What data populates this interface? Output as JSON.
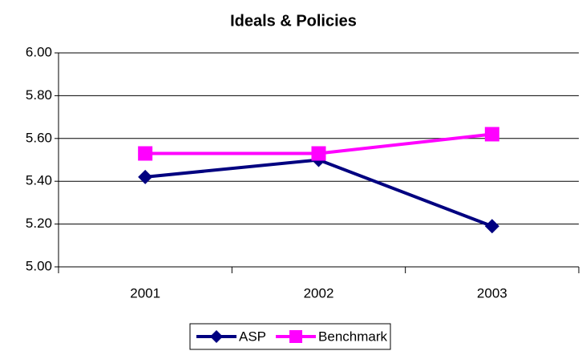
{
  "chart_data": {
    "type": "line",
    "title": "Ideals & Policies",
    "categories": [
      "2001",
      "2002",
      "2003"
    ],
    "series": [
      {
        "name": "ASP",
        "color": "#000080",
        "marker": "diamond",
        "values": [
          5.42,
          5.5,
          5.19
        ]
      },
      {
        "name": "Benchmark",
        "color": "#ff00ff",
        "marker": "square",
        "values": [
          5.53,
          5.53,
          5.62
        ]
      }
    ],
    "ylim": [
      5.0,
      6.0
    ],
    "yticks": [
      {
        "value": 5.0,
        "label": "5.00"
      },
      {
        "value": 5.2,
        "label": "5.20"
      },
      {
        "value": 5.4,
        "label": "5.40"
      },
      {
        "value": 5.6,
        "label": "5.60"
      },
      {
        "value": 5.8,
        "label": "5.80"
      },
      {
        "value": 6.0,
        "label": "6.00"
      }
    ],
    "grid": true,
    "legend": "bottom"
  }
}
